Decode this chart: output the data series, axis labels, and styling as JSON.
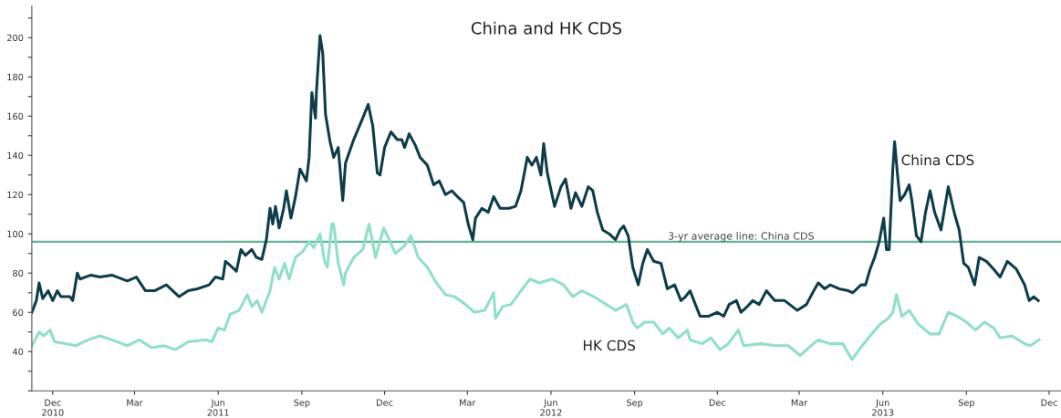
{
  "chart_data": {
    "type": "line",
    "title": "China and HK CDS",
    "xlim": [
      "2010-11-22",
      "2013-12-28"
    ],
    "ylim": [
      20,
      216
    ],
    "xticks": [
      {
        "value": "2010-12-15",
        "label": "Dec\n2010"
      },
      {
        "value": "2011-03-15",
        "label": "Mar"
      },
      {
        "value": "2011-06-15",
        "label": "Jun\n2011"
      },
      {
        "value": "2011-09-15",
        "label": "Sep"
      },
      {
        "value": "2011-12-15",
        "label": "Dec"
      },
      {
        "value": "2012-03-15",
        "label": "Mar"
      },
      {
        "value": "2012-06-15",
        "label": "Jun\n2012"
      },
      {
        "value": "2012-09-15",
        "label": "Sep"
      },
      {
        "value": "2012-12-15",
        "label": "Dec"
      },
      {
        "value": "2013-03-15",
        "label": "Mar"
      },
      {
        "value": "2013-06-15",
        "label": "Jun\n2013"
      },
      {
        "value": "2013-09-15",
        "label": "Sep"
      },
      {
        "value": "2013-12-15",
        "label": "Dec"
      }
    ],
    "yticks": [
      {
        "value": 20,
        "label": null
      },
      {
        "value": 30,
        "label": null
      },
      40,
      {
        "value": 50,
        "label": null
      },
      60,
      {
        "value": 70,
        "label": null
      },
      80,
      {
        "value": 90,
        "label": null
      },
      100,
      {
        "value": 110,
        "label": null
      },
      120,
      {
        "value": 130,
        "label": null
      },
      140,
      {
        "value": 150,
        "label": null
      },
      160,
      {
        "value": 170,
        "label": null
      },
      180,
      {
        "value": 190,
        "label": null
      },
      200,
      {
        "value": 210,
        "label": null
      }
    ],
    "grid": false,
    "marker": "none",
    "line_style": "solid",
    "series": [
      {
        "color": "#0d3d4a",
        "x": [
          "2010-11-22",
          "2010-11-27",
          "2010-11-30",
          "2010-12-04",
          "2010-12-10",
          "2010-12-15",
          "2010-12-20",
          "2010-12-24",
          "2011-01-03",
          "2011-01-06",
          "2011-01-11",
          "2011-01-14",
          "2011-01-26",
          "2011-02-05",
          "2011-02-18",
          "2011-03-07",
          "2011-03-17",
          "2011-03-27",
          "2011-04-06",
          "2011-04-19",
          "2011-05-03",
          "2011-05-13",
          "2011-05-23",
          "2011-06-05",
          "2011-06-12",
          "2011-06-20",
          "2011-06-23",
          "2011-06-28",
          "2011-07-05",
          "2011-07-10",
          "2011-07-15",
          "2011-07-22",
          "2011-07-27",
          "2011-08-02",
          "2011-08-07",
          "2011-08-11",
          "2011-08-14",
          "2011-08-17",
          "2011-08-21",
          "2011-08-26",
          "2011-08-29",
          "2011-09-03",
          "2011-09-08",
          "2011-09-13",
          "2011-09-20",
          "2011-09-23",
          "2011-09-26",
          "2011-09-30",
          "2011-10-01",
          "2011-10-05",
          "2011-10-08",
          "2011-10-11",
          "2011-10-16",
          "2011-10-20",
          "2011-10-25",
          "2011-10-30",
          "2011-11-02",
          "2011-11-11",
          "2011-11-21",
          "2011-11-27",
          "2011-12-02",
          "2011-12-07",
          "2011-12-10",
          "2011-12-15",
          "2011-12-22",
          "2011-12-29",
          "2012-01-03",
          "2012-01-06",
          "2012-01-11",
          "2012-01-18",
          "2012-01-23",
          "2012-01-31",
          "2012-02-07",
          "2012-02-13",
          "2012-02-20",
          "2012-02-27",
          "2012-03-04",
          "2012-03-11",
          "2012-03-16",
          "2012-03-21",
          "2012-03-24",
          "2012-03-31",
          "2012-04-07",
          "2012-04-13",
          "2012-04-20",
          "2012-04-30",
          "2012-05-07",
          "2012-05-13",
          "2012-05-20",
          "2012-05-25",
          "2012-05-30",
          "2012-06-04",
          "2012-06-07",
          "2012-06-11",
          "2012-06-19",
          "2012-06-26",
          "2012-07-01",
          "2012-07-07",
          "2012-07-12",
          "2012-07-19",
          "2012-07-26",
          "2012-07-31",
          "2012-08-05",
          "2012-08-11",
          "2012-08-18",
          "2012-08-25",
          "2012-08-30",
          "2012-09-03",
          "2012-09-08",
          "2012-09-13",
          "2012-09-19",
          "2012-09-24",
          "2012-09-29",
          "2012-10-06",
          "2012-10-14",
          "2012-10-21",
          "2012-10-29",
          "2012-11-05",
          "2012-11-10",
          "2012-11-15",
          "2012-11-26",
          "2012-12-05",
          "2012-12-15",
          "2012-12-22",
          "2012-12-28",
          "2013-01-05",
          "2013-01-10",
          "2013-01-17",
          "2013-01-23",
          "2013-01-30",
          "2013-02-07",
          "2013-02-16",
          "2013-02-27",
          "2013-03-13",
          "2013-03-23",
          "2013-03-31",
          "2013-04-05",
          "2013-04-12",
          "2013-04-18",
          "2013-04-28",
          "2013-05-08",
          "2013-05-13",
          "2013-05-22",
          "2013-05-27",
          "2013-06-01",
          "2013-06-06",
          "2013-06-11",
          "2013-06-16",
          "2013-06-19",
          "2013-06-22",
          "2013-06-26",
          "2013-06-28",
          "2013-07-01",
          "2013-07-04",
          "2013-07-09",
          "2013-07-14",
          "2013-07-17",
          "2013-07-22",
          "2013-07-27",
          "2013-08-01",
          "2013-08-06",
          "2013-08-11",
          "2013-08-18",
          "2013-08-26",
          "2013-09-02",
          "2013-09-07",
          "2013-09-12",
          "2013-09-17",
          "2013-09-24",
          "2013-09-29",
          "2013-10-07",
          "2013-10-15",
          "2013-10-22",
          "2013-10-30",
          "2013-11-09",
          "2013-11-18",
          "2013-11-23",
          "2013-11-28",
          "2013-12-03"
        ],
        "values": [
          60,
          66,
          75,
          67,
          71,
          66,
          71,
          68,
          68,
          66,
          80,
          77,
          79,
          78,
          79,
          76,
          78,
          71,
          71,
          74,
          68,
          71,
          72,
          74,
          78,
          77,
          86,
          84,
          81,
          92,
          89,
          92,
          88,
          87,
          97,
          113,
          105,
          114,
          103,
          113,
          122,
          108,
          119,
          133,
          127,
          139,
          172,
          159,
          172,
          201,
          192,
          161,
          147,
          139,
          144,
          117,
          136,
          148,
          159,
          166,
          155,
          131,
          130,
          144,
          152,
          148,
          148,
          144,
          151,
          145,
          139,
          135,
          125,
          127,
          120,
          122,
          119,
          116,
          105,
          97,
          108,
          113,
          111,
          119,
          113,
          113,
          114,
          122,
          139,
          135,
          139,
          130,
          146,
          131,
          114,
          124,
          128,
          113,
          121,
          114,
          124,
          122,
          111,
          102,
          100,
          97,
          102,
          104,
          99,
          83,
          74,
          85,
          92,
          86,
          85,
          72,
          74,
          66,
          68,
          71,
          58,
          58,
          60,
          58,
          64,
          66,
          60,
          63,
          66,
          64,
          71,
          66,
          66,
          61,
          64,
          71,
          75,
          72,
          74,
          72,
          71,
          70,
          74,
          74,
          82,
          88,
          96,
          108,
          92,
          92,
          133,
          147,
          131,
          117,
          120,
          125,
          117,
          99,
          96,
          111,
          122,
          111,
          102,
          124,
          110,
          102,
          85,
          83,
          74,
          88,
          86,
          82,
          78,
          86,
          82,
          74,
          66,
          68,
          66
        ]
      },
      {
        "color": "#8fe0c6",
        "x": [
          "2010-11-22",
          "2010-11-30",
          "2010-12-05",
          "2010-12-12",
          "2010-12-17",
          "2010-12-30",
          "2011-01-09",
          "2011-01-23",
          "2011-02-05",
          "2011-02-18",
          "2011-03-07",
          "2011-03-20",
          "2011-04-03",
          "2011-04-16",
          "2011-04-29",
          "2011-05-13",
          "2011-06-02",
          "2011-06-08",
          "2011-06-15",
          "2011-06-22",
          "2011-06-28",
          "2011-07-08",
          "2011-07-17",
          "2011-07-22",
          "2011-07-28",
          "2011-08-02",
          "2011-08-11",
          "2011-08-16",
          "2011-08-21",
          "2011-08-27",
          "2011-09-01",
          "2011-09-08",
          "2011-09-16",
          "2011-09-23",
          "2011-09-28",
          "2011-10-05",
          "2011-10-10",
          "2011-10-13",
          "2011-10-18",
          "2011-10-20",
          "2011-10-25",
          "2011-10-31",
          "2011-11-02",
          "2011-11-11",
          "2011-11-21",
          "2011-11-28",
          "2011-12-05",
          "2011-12-14",
          "2011-12-20",
          "2011-12-27",
          "2012-01-06",
          "2012-01-13",
          "2012-01-21",
          "2012-01-31",
          "2012-02-10",
          "2012-02-20",
          "2012-03-01",
          "2012-03-13",
          "2012-03-23",
          "2012-04-03",
          "2012-04-13",
          "2012-04-15",
          "2012-04-23",
          "2012-05-02",
          "2012-05-13",
          "2012-05-23",
          "2012-06-02",
          "2012-06-16",
          "2012-06-29",
          "2012-07-09",
          "2012-07-19",
          "2012-08-01",
          "2012-08-15",
          "2012-08-25",
          "2012-09-06",
          "2012-09-13",
          "2012-09-18",
          "2012-09-26",
          "2012-10-06",
          "2012-10-16",
          "2012-10-23",
          "2012-11-02",
          "2012-11-12",
          "2012-11-15",
          "2012-11-28",
          "2012-12-08",
          "2012-12-18",
          "2012-12-27",
          "2013-01-07",
          "2013-01-13",
          "2013-02-01",
          "2013-02-17",
          "2013-03-03",
          "2013-03-16",
          "2013-03-28",
          "2013-04-05",
          "2013-04-18",
          "2013-05-02",
          "2013-05-12",
          "2013-05-20",
          "2013-06-01",
          "2013-06-12",
          "2013-06-21",
          "2013-06-26",
          "2013-06-30",
          "2013-07-06",
          "2013-07-14",
          "2013-07-24",
          "2013-08-06",
          "2013-08-16",
          "2013-08-26",
          "2013-09-05",
          "2013-09-15",
          "2013-09-25",
          "2013-10-05",
          "2013-10-15",
          "2013-10-22",
          "2013-11-04",
          "2013-11-18",
          "2013-11-24",
          "2013-12-04"
        ],
        "values": [
          43,
          50,
          48,
          51,
          45,
          44,
          43,
          46,
          48,
          46,
          43,
          46,
          42,
          43,
          41,
          45,
          46,
          45,
          52,
          51,
          59,
          61,
          69,
          63,
          66,
          60,
          71,
          83,
          77,
          85,
          77,
          88,
          91,
          96,
          93,
          100,
          86,
          83,
          105,
          105,
          85,
          74,
          80,
          88,
          92,
          105,
          88,
          103,
          97,
          90,
          94,
          99,
          88,
          83,
          75,
          69,
          68,
          64,
          60,
          61,
          70,
          57,
          63,
          64,
          71,
          77,
          75,
          77,
          74,
          68,
          71,
          68,
          64,
          61,
          64,
          55,
          52,
          55,
          55,
          49,
          52,
          47,
          51,
          46,
          44,
          47,
          41,
          44,
          51,
          43,
          44,
          43,
          43,
          38,
          43,
          46,
          44,
          44,
          36,
          41,
          48,
          54,
          57,
          60,
          69,
          58,
          61,
          54,
          49,
          49,
          60,
          58,
          55,
          51,
          55,
          52,
          47,
          48,
          44,
          43,
          46
        ]
      }
    ],
    "ref_lines": [
      {
        "axis": "y",
        "value": 96,
        "label": "3-yr average line: China CDS",
        "color": "#5cb896"
      }
    ],
    "annotations": [
      {
        "text": "China CDS",
        "x": "2013-07-05",
        "y": 137
      },
      "HK CDS"
    ]
  }
}
